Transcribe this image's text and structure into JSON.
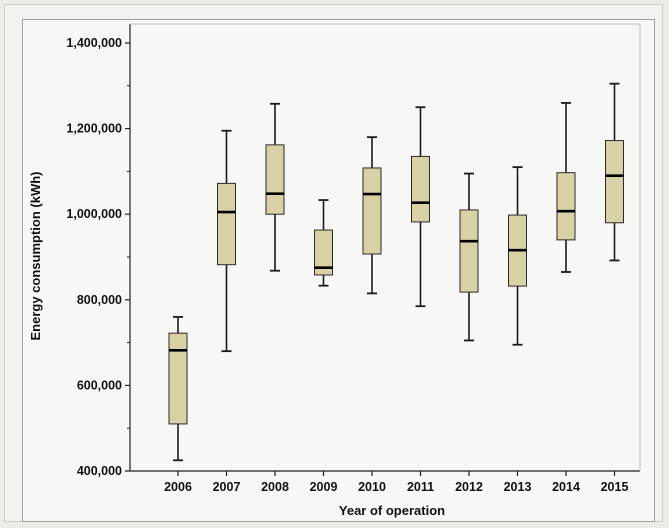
{
  "chart_data": {
    "type": "boxplot",
    "title": "",
    "xlabel": "Year of operation",
    "ylabel": "Energy consumption (kWh)",
    "ylim": [
      400000,
      1450000
    ],
    "yticks": [
      400000,
      600000,
      800000,
      1000000,
      1200000,
      1400000
    ],
    "ytick_labels": [
      "400,000",
      "600,000",
      "800,000",
      "1,000,000",
      "1,200,000",
      "1,400,000"
    ],
    "categories": [
      "2006",
      "2007",
      "2008",
      "2009",
      "2010",
      "2011",
      "2012",
      "2013",
      "2014",
      "2015"
    ],
    "box_color": "#d9d1a6",
    "grid": false,
    "boxes": [
      {
        "category": "2006",
        "min": 425000,
        "q1": 510000,
        "median": 682000,
        "q3": 722000,
        "max": 760000
      },
      {
        "category": "2007",
        "min": 680000,
        "q1": 882000,
        "median": 1005000,
        "q3": 1072000,
        "max": 1195000
      },
      {
        "category": "2008",
        "min": 868000,
        "q1": 1000000,
        "median": 1048000,
        "q3": 1162000,
        "max": 1258000
      },
      {
        "category": "2009",
        "min": 833000,
        "q1": 858000,
        "median": 875000,
        "q3": 963000,
        "max": 1033000
      },
      {
        "category": "2010",
        "min": 815000,
        "q1": 907000,
        "median": 1047000,
        "q3": 1108000,
        "max": 1180000
      },
      {
        "category": "2011",
        "min": 785000,
        "q1": 982000,
        "median": 1027000,
        "q3": 1135000,
        "max": 1250000
      },
      {
        "category": "2012",
        "min": 705000,
        "q1": 818000,
        "median": 937000,
        "q3": 1010000,
        "max": 1095000
      },
      {
        "category": "2013",
        "min": 695000,
        "q1": 832000,
        "median": 916000,
        "q3": 998000,
        "max": 1110000
      },
      {
        "category": "2014",
        "min": 865000,
        "q1": 940000,
        "median": 1007000,
        "q3": 1097000,
        "max": 1260000
      },
      {
        "category": "2015",
        "min": 892000,
        "q1": 980000,
        "median": 1090000,
        "q3": 1172000,
        "max": 1305000
      }
    ]
  }
}
